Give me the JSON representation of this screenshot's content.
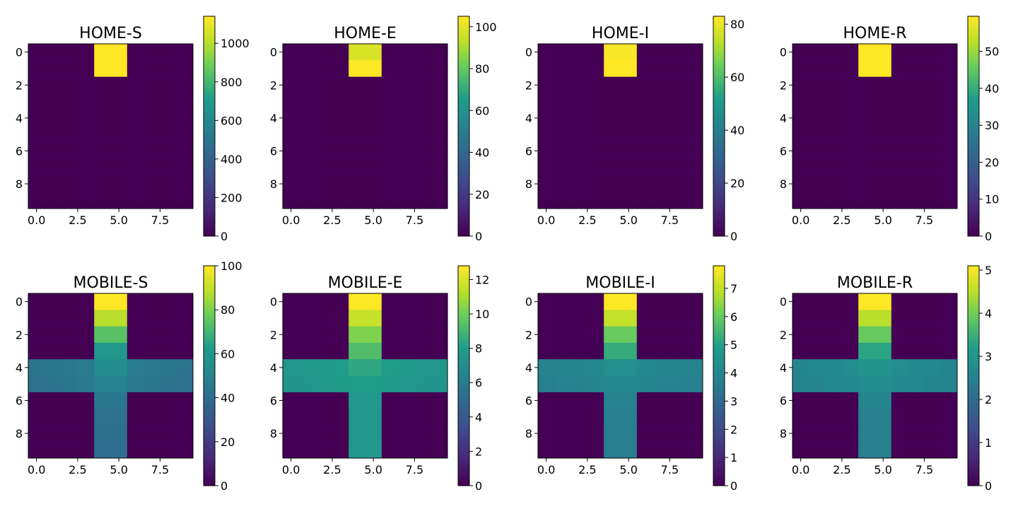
{
  "chart_data": [
    {
      "type": "heatmap",
      "title": "HOME-S",
      "xticks": [
        "0.0",
        "2.5",
        "5.0",
        "7.5"
      ],
      "yticks": [
        "0",
        "2",
        "4",
        "6",
        "8"
      ],
      "colorbar": {
        "ticks": [
          "0",
          "200",
          "400",
          "600",
          "800",
          "1000"
        ],
        "tick_values": [
          0,
          200,
          400,
          600,
          800,
          1000
        ],
        "min": 0,
        "max": 1140
      },
      "colormap": "viridis",
      "grid": [
        [
          0,
          0,
          0,
          0,
          1140,
          1140,
          0,
          0,
          0,
          0
        ],
        [
          0,
          0,
          0,
          0,
          1140,
          1140,
          0,
          0,
          0,
          0
        ],
        [
          0,
          0,
          0,
          0,
          0,
          0,
          0,
          0,
          0,
          0
        ],
        [
          0,
          0,
          0,
          0,
          0,
          0,
          0,
          0,
          0,
          0
        ],
        [
          0,
          0,
          0,
          0,
          0,
          0,
          0,
          0,
          0,
          0
        ],
        [
          0,
          0,
          0,
          0,
          0,
          0,
          0,
          0,
          0,
          0
        ],
        [
          0,
          0,
          0,
          0,
          0,
          0,
          0,
          0,
          0,
          0
        ],
        [
          0,
          0,
          0,
          0,
          0,
          0,
          0,
          0,
          0,
          0
        ],
        [
          0,
          0,
          0,
          0,
          0,
          0,
          0,
          0,
          0,
          0
        ],
        [
          0,
          0,
          0,
          0,
          0,
          0,
          0,
          0,
          0,
          0
        ]
      ]
    },
    {
      "type": "heatmap",
      "title": "HOME-E",
      "xticks": [
        "0.0",
        "2.5",
        "5.0",
        "7.5"
      ],
      "yticks": [
        "0",
        "2",
        "4",
        "6",
        "8"
      ],
      "colorbar": {
        "ticks": [
          "0",
          "20",
          "40",
          "60",
          "80",
          "100"
        ],
        "tick_values": [
          0,
          20,
          40,
          60,
          80,
          100
        ],
        "min": 0,
        "max": 105
      },
      "colormap": "viridis",
      "grid": [
        [
          0,
          0,
          0,
          0,
          98,
          98,
          0,
          0,
          0,
          0
        ],
        [
          0,
          0,
          0,
          0,
          105,
          105,
          0,
          0,
          0,
          0
        ],
        [
          0,
          0,
          0,
          0,
          0,
          0,
          0,
          0,
          0,
          0
        ],
        [
          0,
          0,
          0,
          0,
          0,
          0,
          0,
          0,
          0,
          0
        ],
        [
          0,
          0,
          0,
          0,
          0,
          0,
          0,
          0,
          0,
          0
        ],
        [
          0,
          0,
          0,
          0,
          0,
          0,
          0,
          0,
          0,
          0
        ],
        [
          0,
          0,
          0,
          0,
          0,
          0,
          0,
          0,
          0,
          0
        ],
        [
          0,
          0,
          0,
          0,
          0,
          0,
          0,
          0,
          0,
          0
        ],
        [
          0,
          0,
          0,
          0,
          0,
          0,
          0,
          0,
          0,
          0
        ],
        [
          0,
          0,
          0,
          0,
          0,
          0,
          0,
          0,
          0,
          0
        ]
      ]
    },
    {
      "type": "heatmap",
      "title": "HOME-I",
      "xticks": [
        "0.0",
        "2.5",
        "5.0",
        "7.5"
      ],
      "yticks": [
        "0",
        "2",
        "4",
        "6",
        "8"
      ],
      "colorbar": {
        "ticks": [
          "0",
          "20",
          "40",
          "60",
          "80"
        ],
        "tick_values": [
          0,
          20,
          40,
          60,
          80
        ],
        "min": 0,
        "max": 83
      },
      "colormap": "viridis",
      "grid": [
        [
          0,
          0,
          0,
          0,
          82,
          82,
          0,
          0,
          0,
          0
        ],
        [
          0,
          0,
          0,
          0,
          83,
          83,
          0,
          0,
          0,
          0
        ],
        [
          0,
          0,
          0,
          0,
          0,
          0,
          0,
          0,
          0,
          0
        ],
        [
          0,
          0,
          0,
          0,
          0,
          0,
          0,
          0,
          0,
          0
        ],
        [
          0,
          0,
          0,
          0,
          0,
          0,
          0,
          0,
          0,
          0
        ],
        [
          0,
          0,
          0,
          0,
          0,
          0,
          0,
          0,
          0,
          0
        ],
        [
          0,
          0,
          0,
          0,
          0,
          0,
          0,
          0,
          0,
          0
        ],
        [
          0,
          0,
          0,
          0,
          0,
          0,
          0,
          0,
          0,
          0
        ],
        [
          0,
          0,
          0,
          0,
          0,
          0,
          0,
          0,
          0,
          0
        ],
        [
          0,
          0,
          0,
          0,
          0,
          0,
          0,
          0,
          0,
          0
        ]
      ]
    },
    {
      "type": "heatmap",
      "title": "HOME-R",
      "xticks": [
        "0.0",
        "2.5",
        "5.0",
        "7.5"
      ],
      "yticks": [
        "0",
        "2",
        "4",
        "6",
        "8"
      ],
      "colorbar": {
        "ticks": [
          "0",
          "10",
          "20",
          "30",
          "40",
          "50"
        ],
        "tick_values": [
          0,
          10,
          20,
          30,
          40,
          50
        ],
        "min": 0,
        "max": 59.5
      },
      "colormap": "viridis",
      "grid": [
        [
          0,
          0,
          0,
          0,
          59.5,
          59.5,
          0,
          0,
          0,
          0
        ],
        [
          0,
          0,
          0,
          0,
          59.5,
          59.5,
          0,
          0,
          0,
          0
        ],
        [
          0,
          0,
          0,
          0,
          0,
          0,
          0,
          0,
          0,
          0
        ],
        [
          0,
          0,
          0,
          0,
          0,
          0,
          0,
          0,
          0,
          0
        ],
        [
          0,
          0,
          0,
          0,
          0,
          0,
          0,
          0,
          0,
          0
        ],
        [
          0,
          0,
          0,
          0,
          0,
          0,
          0,
          0,
          0,
          0
        ],
        [
          0,
          0,
          0,
          0,
          0,
          0,
          0,
          0,
          0,
          0
        ],
        [
          0,
          0,
          0,
          0,
          0,
          0,
          0,
          0,
          0,
          0
        ],
        [
          0,
          0,
          0,
          0,
          0,
          0,
          0,
          0,
          0,
          0
        ],
        [
          0,
          0,
          0,
          0,
          0,
          0,
          0,
          0,
          0,
          0
        ]
      ]
    },
    {
      "type": "heatmap",
      "title": "MOBILE-S",
      "xticks": [
        "0.0",
        "2.5",
        "5.0",
        "7.5"
      ],
      "yticks": [
        "0",
        "2",
        "4",
        "6",
        "8"
      ],
      "colorbar": {
        "ticks": [
          "0",
          "20",
          "40",
          "60",
          "80",
          "100"
        ],
        "tick_values": [
          0,
          20,
          40,
          60,
          80,
          100
        ],
        "min": 0,
        "max": 100
      },
      "colormap": "viridis",
      "grid": [
        [
          0,
          0,
          0,
          0,
          100,
          100,
          0,
          0,
          0,
          0
        ],
        [
          0,
          0,
          0,
          0,
          88,
          88,
          0,
          0,
          0,
          0
        ],
        [
          0,
          0,
          0,
          0,
          74,
          74,
          0,
          0,
          0,
          0
        ],
        [
          0,
          0,
          0,
          0,
          60,
          60,
          0,
          0,
          0,
          0
        ],
        [
          43,
          44,
          45,
          47,
          55,
          55,
          47,
          45,
          44,
          43
        ],
        [
          42,
          43,
          44,
          46,
          50,
          50,
          46,
          44,
          43,
          42
        ],
        [
          0,
          0,
          0,
          0,
          44,
          44,
          0,
          0,
          0,
          0
        ],
        [
          0,
          0,
          0,
          0,
          42,
          42,
          0,
          0,
          0,
          0
        ],
        [
          0,
          0,
          0,
          0,
          41,
          41,
          0,
          0,
          0,
          0
        ],
        [
          0,
          0,
          0,
          0,
          40,
          40,
          0,
          0,
          0,
          0
        ]
      ]
    },
    {
      "type": "heatmap",
      "title": "MOBILE-E",
      "xticks": [
        "0.0",
        "2.5",
        "5.0",
        "7.5"
      ],
      "yticks": [
        "0",
        "2",
        "4",
        "6",
        "8"
      ],
      "colorbar": {
        "ticks": [
          "0",
          "2",
          "4",
          "6",
          "8",
          "10",
          "12"
        ],
        "tick_values": [
          0,
          2,
          4,
          6,
          8,
          10,
          12
        ],
        "min": 0,
        "max": 12.8
      },
      "colormap": "viridis",
      "grid": [
        [
          0,
          0,
          0,
          0,
          12.8,
          12.8,
          0,
          0,
          0,
          0
        ],
        [
          0,
          0,
          0,
          0,
          11.6,
          11.6,
          0,
          0,
          0,
          0
        ],
        [
          0,
          0,
          0,
          0,
          10.3,
          10.3,
          0,
          0,
          0,
          0
        ],
        [
          0,
          0,
          0,
          0,
          9.3,
          9.3,
          0,
          0,
          0,
          0
        ],
        [
          7.6,
          7.7,
          7.8,
          8.0,
          8.4,
          8.4,
          8.0,
          7.8,
          7.7,
          7.6
        ],
        [
          7.5,
          7.6,
          7.7,
          7.9,
          8.0,
          8.0,
          7.9,
          7.7,
          7.6,
          7.5
        ],
        [
          0,
          0,
          0,
          0,
          7.7,
          7.7,
          0,
          0,
          0,
          0
        ],
        [
          0,
          0,
          0,
          0,
          7.6,
          7.6,
          0,
          0,
          0,
          0
        ],
        [
          0,
          0,
          0,
          0,
          7.6,
          7.6,
          0,
          0,
          0,
          0
        ],
        [
          0,
          0,
          0,
          0,
          7.7,
          7.7,
          0,
          0,
          0,
          0
        ]
      ]
    },
    {
      "type": "heatmap",
      "title": "MOBILE-I",
      "xticks": [
        "0.0",
        "2.5",
        "5.0",
        "7.5"
      ],
      "yticks": [
        "0",
        "2",
        "4",
        "6",
        "8"
      ],
      "colorbar": {
        "ticks": [
          "0",
          "1",
          "2",
          "3",
          "4",
          "5",
          "6",
          "7"
        ],
        "tick_values": [
          0,
          1,
          2,
          3,
          4,
          5,
          6,
          7
        ],
        "min": 0,
        "max": 7.8
      },
      "colormap": "viridis",
      "grid": [
        [
          0,
          0,
          0,
          0,
          7.8,
          7.8,
          0,
          0,
          0,
          0
        ],
        [
          0,
          0,
          0,
          0,
          7.0,
          7.0,
          0,
          0,
          0,
          0
        ],
        [
          0,
          0,
          0,
          0,
          6.0,
          6.0,
          0,
          0,
          0,
          0
        ],
        [
          0,
          0,
          0,
          0,
          5.2,
          5.2,
          0,
          0,
          0,
          0
        ],
        [
          3.9,
          4.0,
          4.0,
          4.1,
          4.4,
          4.4,
          4.1,
          4.0,
          4.0,
          3.9
        ],
        [
          3.8,
          3.9,
          3.9,
          4.0,
          4.1,
          4.1,
          4.0,
          3.9,
          3.9,
          3.8
        ],
        [
          0,
          0,
          0,
          0,
          3.9,
          3.9,
          0,
          0,
          0,
          0
        ],
        [
          0,
          0,
          0,
          0,
          3.8,
          3.8,
          0,
          0,
          0,
          0
        ],
        [
          0,
          0,
          0,
          0,
          3.7,
          3.7,
          0,
          0,
          0,
          0
        ],
        [
          0,
          0,
          0,
          0,
          3.7,
          3.7,
          0,
          0,
          0,
          0
        ]
      ]
    },
    {
      "type": "heatmap",
      "title": "MOBILE-R",
      "xticks": [
        "0.0",
        "2.5",
        "5.0",
        "7.5"
      ],
      "yticks": [
        "0",
        "2",
        "4",
        "6",
        "8"
      ],
      "colorbar": {
        "ticks": [
          "0",
          "1",
          "2",
          "3",
          "4",
          "5"
        ],
        "tick_values": [
          0,
          1,
          2,
          3,
          4,
          5
        ],
        "min": 0,
        "max": 5.1
      },
      "colormap": "viridis",
      "grid": [
        [
          0,
          0,
          0,
          0,
          5.1,
          5.1,
          0,
          0,
          0,
          0
        ],
        [
          0,
          0,
          0,
          0,
          4.5,
          4.5,
          0,
          0,
          0,
          0
        ],
        [
          0,
          0,
          0,
          0,
          3.9,
          3.9,
          0,
          0,
          0,
          0
        ],
        [
          0,
          0,
          0,
          0,
          3.3,
          3.3,
          0,
          0,
          0,
          0
        ],
        [
          2.6,
          2.7,
          2.7,
          2.8,
          3.0,
          3.0,
          2.8,
          2.7,
          2.7,
          2.6
        ],
        [
          2.6,
          2.6,
          2.7,
          2.7,
          2.8,
          2.8,
          2.7,
          2.7,
          2.6,
          2.6
        ],
        [
          0,
          0,
          0,
          0,
          2.6,
          2.6,
          0,
          0,
          0,
          0
        ],
        [
          0,
          0,
          0,
          0,
          2.5,
          2.5,
          0,
          0,
          0,
          0
        ],
        [
          0,
          0,
          0,
          0,
          2.5,
          2.5,
          0,
          0,
          0,
          0
        ],
        [
          0,
          0,
          0,
          0,
          2.5,
          2.5,
          0,
          0,
          0,
          0
        ]
      ]
    }
  ]
}
